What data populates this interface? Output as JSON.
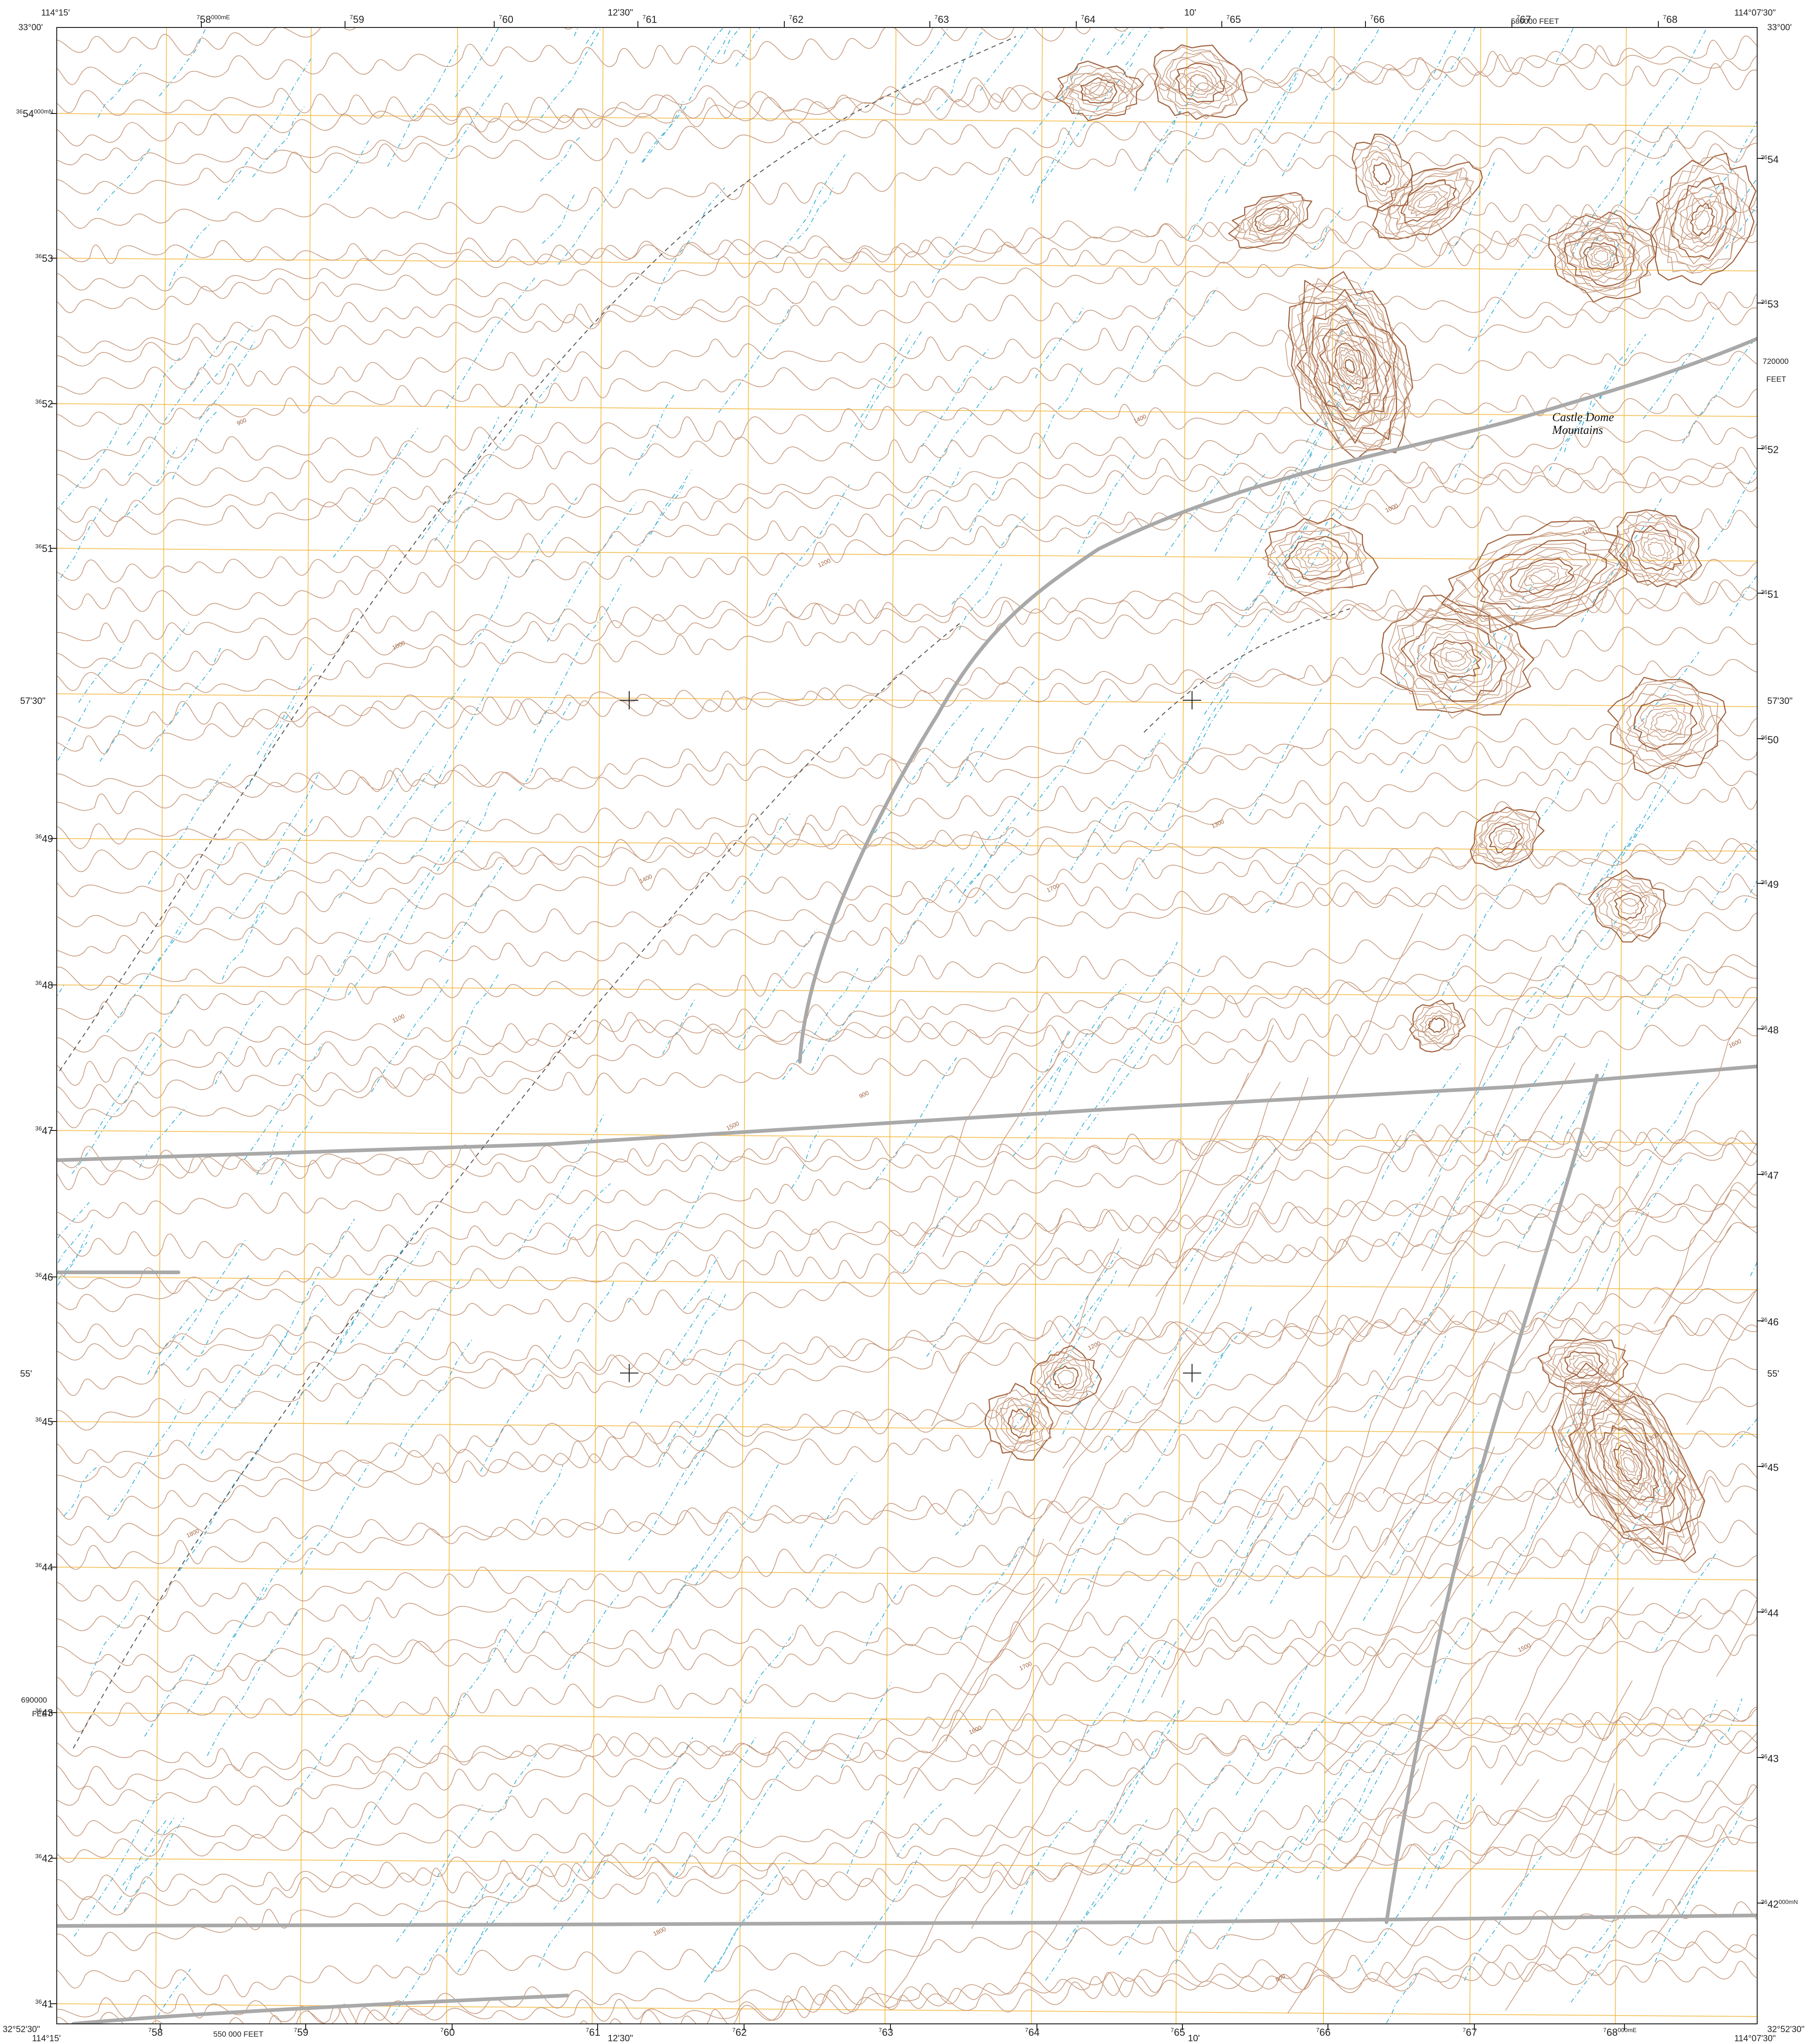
{
  "map": {
    "colors": {
      "contour": "#c69a7e",
      "contour_index": "#a0623d",
      "drainage": "#3fb1d6",
      "grid": "#f3b93f",
      "road": "#a9a9a9",
      "trail": "#555555",
      "neatline": "#222222"
    },
    "corners": {
      "tl_lon": "114°15'",
      "tl_lat": "33°00'",
      "tr_lon": "114°07'30\"",
      "tr_lat": "33°00'",
      "bl_lon": "114°15'",
      "bl_lat": "32°52'30\"",
      "br_lon": "114°07'30\"",
      "br_lat": "32°52'30\""
    },
    "top_ticks": {
      "utm": [
        "58",
        "59",
        "60",
        "61",
        "62",
        "63",
        "64",
        "65",
        "66",
        "67",
        "68"
      ],
      "utm_prefix": "7",
      "first_suffix": "000mE",
      "mid_lon_1": "12'30\"",
      "mid_lon_2": "10'",
      "feet": "580000 FEET"
    },
    "bottom_ticks": {
      "utm": [
        "58",
        "59",
        "60",
        "61",
        "62",
        "63",
        "64",
        "65",
        "66",
        "67",
        "68"
      ],
      "utm_prefix": "7",
      "last_suffix": "000mE",
      "mid_lon_1": "12'30\"",
      "mid_lon_2": "10'",
      "feet": "550 000 FEET"
    },
    "left_ticks": {
      "utm": [
        "54",
        "53",
        "52",
        "51",
        "49",
        "48",
        "47",
        "46",
        "45",
        "44",
        "43",
        "42",
        "41"
      ],
      "utm_prefix": "36",
      "first_suffix": "000mN",
      "lat_1": "57'30\"",
      "lat_2": "55'",
      "feet_value": "690000",
      "feet_unit": "FEET"
    },
    "right_ticks": {
      "utm": [
        "54",
        "53",
        "52",
        "51",
        "50",
        "49",
        "48",
        "47",
        "46",
        "45",
        "44",
        "43",
        "42"
      ],
      "utm_prefix": "36",
      "last_suffix": "000mN",
      "lat_1": "57'30\"",
      "lat_2": "55'",
      "feet_value": "720000",
      "feet_unit": "FEET"
    },
    "place_name_line1": "Castle Dome",
    "place_name_line2": "Mountains",
    "contour_labels": [
      "900",
      "1000",
      "1100",
      "1200",
      "1300",
      "1400",
      "1500",
      "1600",
      "1700",
      "1800",
      "800"
    ]
  }
}
